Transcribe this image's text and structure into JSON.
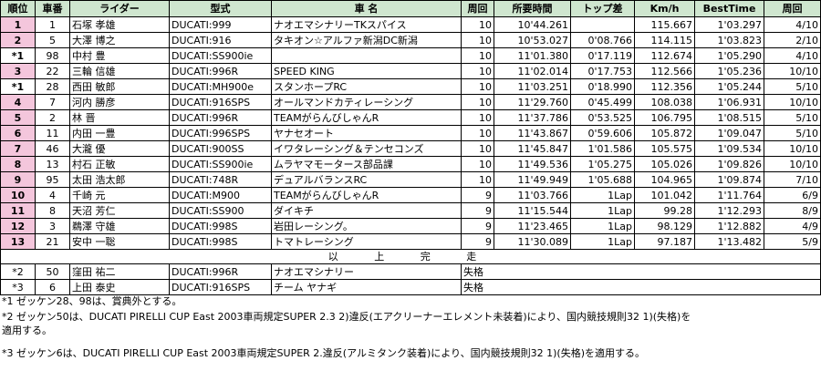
{
  "headers": [
    "順位",
    "車番",
    "ライダー",
    "型式",
    "車 名",
    "周回",
    "所要時間",
    "トップ差",
    "Km/h",
    "BestTime",
    "周回"
  ],
  "rows": [
    {
      "pos": "1",
      "no": "1",
      "rider": "石塚 孝雄",
      "model": "DUCATI:999",
      "team": "ナオエマシナリーTKスパイス",
      "laps": "10",
      "time": "10'44.261",
      "gap": "",
      "kmh": "115.667",
      "best": "1'03.297",
      "bestlap": "4/10",
      "pink": true
    },
    {
      "pos": "2",
      "no": "5",
      "rider": "大澤 博之",
      "model": "DUCATI:916",
      "team": "タキオン☆アルファ新潟DC新潟",
      "laps": "10",
      "time": "10'53.027",
      "gap": "0'08.766",
      "kmh": "114.115",
      "best": "1'03.823",
      "bestlap": "2/10",
      "pink": true
    },
    {
      "pos": "*1",
      "no": "98",
      "rider": "中村 豊",
      "model": "DUCATI:SS900ie",
      "team": "",
      "laps": "10",
      "time": "11'01.380",
      "gap": "0'17.119",
      "kmh": "112.674",
      "best": "1'05.290",
      "bestlap": "4/10",
      "pink": false
    },
    {
      "pos": "3",
      "no": "22",
      "rider": "三輪 信雄",
      "model": "DUCATI:996R",
      "team": "SPEED KING",
      "laps": "10",
      "time": "11'02.014",
      "gap": "0'17.753",
      "kmh": "112.566",
      "best": "1'05.236",
      "bestlap": "10/10",
      "pink": true
    },
    {
      "pos": "*1",
      "no": "28",
      "rider": "西田 敏郎",
      "model": "DUCATI:MH900e",
      "team": "スタンホープRC",
      "laps": "10",
      "time": "11'03.251",
      "gap": "0'18.990",
      "kmh": "112.356",
      "best": "1'05.244",
      "bestlap": "5/10",
      "pink": false
    },
    {
      "pos": "4",
      "no": "7",
      "rider": "河内 勝彦",
      "model": "DUCATI:916SPS",
      "team": "オールマンドカティレーシング",
      "laps": "10",
      "time": "11'29.760",
      "gap": "0'45.499",
      "kmh": "108.038",
      "best": "1'06.931",
      "bestlap": "10/10",
      "pink": true
    },
    {
      "pos": "5",
      "no": "2",
      "rider": "林 晋",
      "model": "DUCATI:996R",
      "team": "TEAMがらんびしゃんR",
      "laps": "10",
      "time": "11'37.786",
      "gap": "0'53.525",
      "kmh": "106.795",
      "best": "1'08.515",
      "bestlap": "5/10",
      "pink": true
    },
    {
      "pos": "6",
      "no": "11",
      "rider": "内田 一豊",
      "model": "DUCATI:996SPS",
      "team": "ヤナセオート",
      "laps": "10",
      "time": "11'43.867",
      "gap": "0'59.606",
      "kmh": "105.872",
      "best": "1'09.047",
      "bestlap": "5/10",
      "pink": true
    },
    {
      "pos": "7",
      "no": "46",
      "rider": "大瀧 優",
      "model": "DUCATI:900SS",
      "team": "イワタレーシング＆テンセコンズ",
      "laps": "10",
      "time": "11'45.847",
      "gap": "1'01.586",
      "kmh": "105.575",
      "best": "1'09.534",
      "bestlap": "10/10",
      "pink": true
    },
    {
      "pos": "8",
      "no": "13",
      "rider": "村石 正敏",
      "model": "DUCATI:SS900ie",
      "team": "ムラヤマモータース部品課",
      "laps": "10",
      "time": "11'49.536",
      "gap": "1'05.275",
      "kmh": "105.026",
      "best": "1'09.826",
      "bestlap": "10/10",
      "pink": true
    },
    {
      "pos": "9",
      "no": "95",
      "rider": "太田 浩太郎",
      "model": "DUCATI:748R",
      "team": "デュアルバランスRC",
      "laps": "10",
      "time": "11'49.949",
      "gap": "1'05.688",
      "kmh": "104.965",
      "best": "1'09.874",
      "bestlap": "7/10",
      "pink": true
    },
    {
      "pos": "10",
      "no": "4",
      "rider": "千崎 元",
      "model": "DUCATI:M900",
      "team": "TEAMがらんびしゃんR",
      "laps": "9",
      "time": "11'03.766",
      "gap": "1Lap",
      "kmh": "101.042",
      "best": "1'11.764",
      "bestlap": "6/9",
      "pink": true
    },
    {
      "pos": "11",
      "no": "8",
      "rider": "天沼 芳仁",
      "model": "DUCATI:SS900",
      "team": "ダイキチ",
      "laps": "9",
      "time": "11'15.544",
      "gap": "1Lap",
      "kmh": "99.28",
      "best": "1'12.293",
      "bestlap": "8/9",
      "pink": true
    },
    {
      "pos": "12",
      "no": "3",
      "rider": "鵜澤 守雄",
      "model": "DUCATI:998S",
      "team": "岩田レーシング。",
      "laps": "9",
      "time": "11'23.465",
      "gap": "1Lap",
      "kmh": "98.129",
      "best": "1'12.882",
      "bestlap": "4/9",
      "pink": true
    },
    {
      "pos": "13",
      "no": "21",
      "rider": "安中 一聡",
      "model": "DUCATI:998S",
      "team": "トマトレーシング",
      "laps": "9",
      "time": "11'30.089",
      "gap": "1Lap",
      "kmh": "97.187",
      "best": "1'13.482",
      "bestlap": "5/9",
      "pink": true
    }
  ],
  "complete_label": "以 上 完 走",
  "dq_rows": [
    {
      "pos": "*2",
      "no": "50",
      "rider": "窪田 祐二",
      "model": "DUCATI:996R",
      "team": "ナオエマシナリー",
      "status": "失格"
    },
    {
      "pos": "*3",
      "no": "6",
      "rider": "上田 泰史",
      "model": "DUCATI:916SPS",
      "team": "チーム ヤナギ",
      "status": "失格"
    }
  ],
  "notes": [
    "*1 ゼッケン28、98は、賞典外とする。",
    "*2 ゼッケン50は、DUCATI PIRELLI CUP East 2003車両規定SUPER 2.3 2)違反(エアクリーナーエレメント未装着)により、国内競技規則32 1)(失格)を",
    "適用する。",
    "*3 ゼッケン6は、DUCATI PIRELLI CUP East 2003車両規定SUPER 2.違反(アルミタンク装着)により、国内競技規則32 1)(失格)を適用する。"
  ]
}
